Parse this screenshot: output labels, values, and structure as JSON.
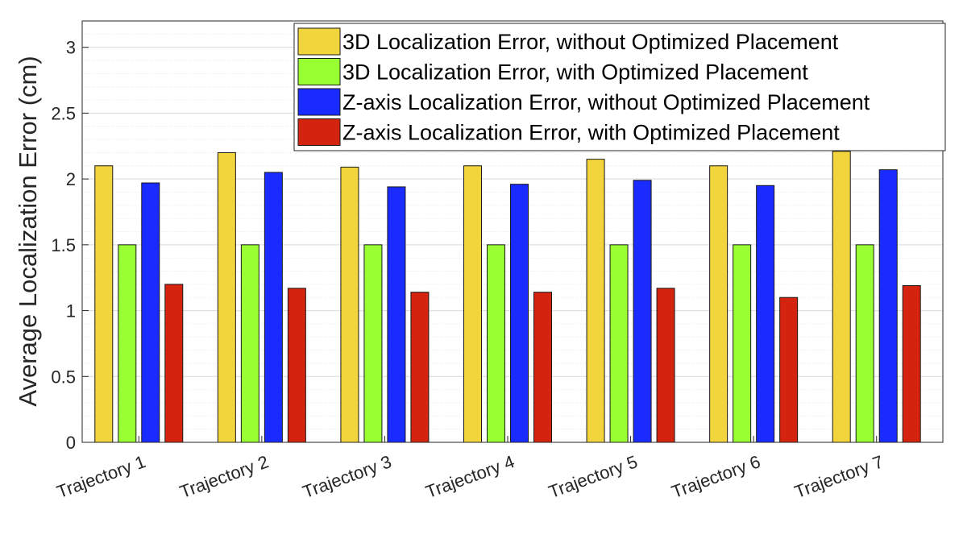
{
  "chart_data": {
    "type": "bar",
    "title": "",
    "xlabel": "",
    "ylabel": "Average Localization Error (cm)",
    "ylim": [
      0,
      3.2
    ],
    "yticks": [
      "0",
      "0.5",
      "1",
      "1.5",
      "2",
      "2.5",
      "3"
    ],
    "grid": true,
    "minor_grid": true,
    "legend_position": "top-right",
    "categories": [
      "Trajectory 1",
      "Trajectory 2",
      "Trajectory 3",
      "Trajectory 4",
      "Trajectory 5",
      "Trajectory 6",
      "Trajectory 7"
    ],
    "series": [
      {
        "name": "3D Localization Error, without Optimized Placement",
        "color": "#f2d43c",
        "values": [
          2.1,
          2.2,
          2.09,
          2.1,
          2.15,
          2.1,
          2.21
        ]
      },
      {
        "name": "3D Localization Error, with Optimized Placement",
        "color": "#99ff33",
        "values": [
          1.5,
          1.5,
          1.5,
          1.5,
          1.5,
          1.5,
          1.5
        ]
      },
      {
        "name": "Z-axis Localization Error, without Optimized Placement",
        "color": "#1a2bff",
        "values": [
          1.97,
          2.05,
          1.94,
          1.96,
          1.99,
          1.95,
          2.07
        ]
      },
      {
        "name": "Z-axis Localization Error, with Optimized Placement",
        "color": "#d42410",
        "values": [
          1.2,
          1.17,
          1.14,
          1.14,
          1.17,
          1.1,
          1.19
        ]
      }
    ]
  }
}
